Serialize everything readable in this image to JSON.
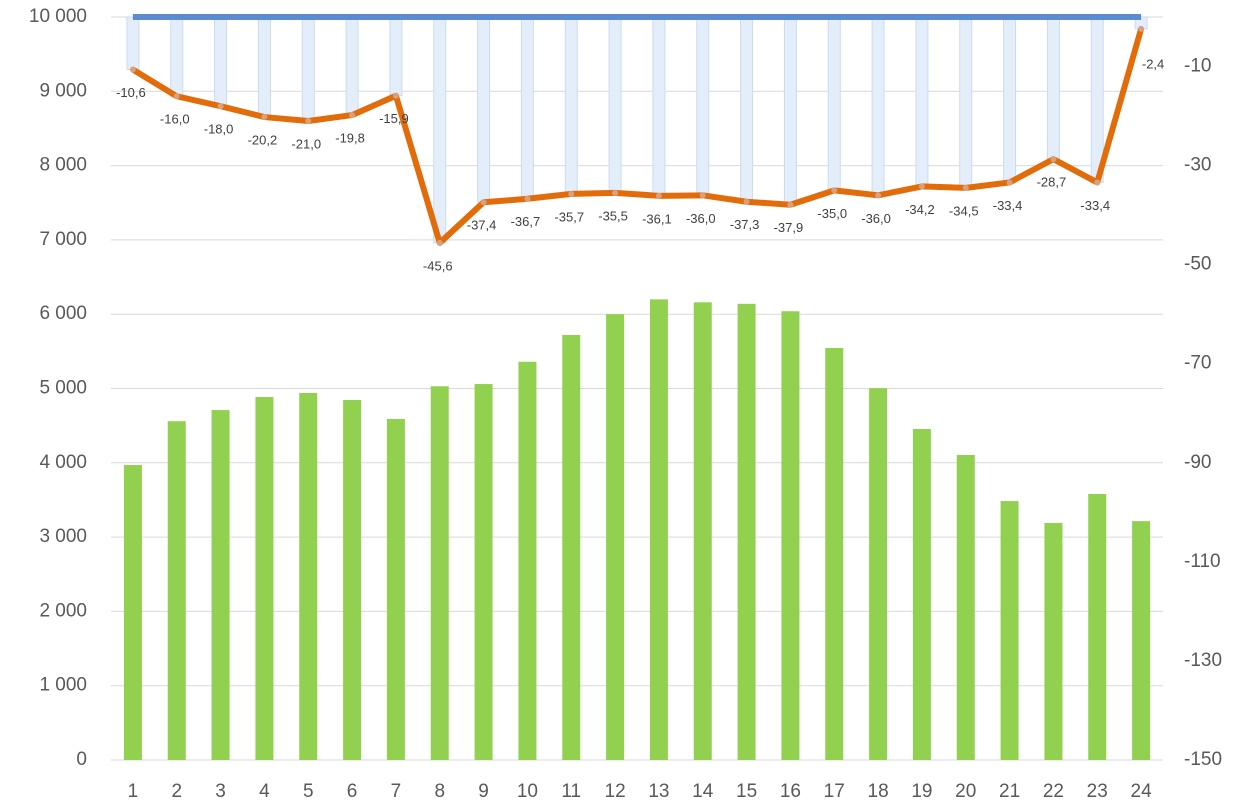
{
  "chart_data": {
    "type": "combo",
    "categories": [
      "1",
      "2",
      "3",
      "4",
      "5",
      "6",
      "7",
      "8",
      "9",
      "10",
      "11",
      "12",
      "13",
      "14",
      "15",
      "16",
      "17",
      "18",
      "19",
      "20",
      "21",
      "22",
      "23",
      "24"
    ],
    "ylim": [
      0,
      10000
    ],
    "yticks": [
      {
        "value": 0,
        "label": "0"
      },
      {
        "value": 1000,
        "label": "1 000"
      },
      {
        "value": 2000,
        "label": "2 000"
      },
      {
        "value": 3000,
        "label": "3 000"
      },
      {
        "value": 4000,
        "label": "4 000"
      },
      {
        "value": 5000,
        "label": "5 000"
      },
      {
        "value": 6000,
        "label": "6 000"
      },
      {
        "value": 7000,
        "label": "7 000"
      },
      {
        "value": 8000,
        "label": "8 000"
      },
      {
        "value": 9000,
        "label": "9 000"
      },
      {
        "value": 10000,
        "label": "10 000"
      }
    ],
    "y2lim": [
      -150,
      0
    ],
    "y2ticks": [
      -150,
      -130,
      -110,
      -90,
      -70,
      -50,
      -30,
      -10
    ],
    "grid": true,
    "series": [
      {
        "type": "bar",
        "axis": "y",
        "color": "#92d050",
        "values": [
          3970,
          4560,
          4710,
          4885,
          4940,
          4845,
          4590,
          5030,
          5060,
          5360,
          5720,
          6000,
          6200,
          6160,
          6140,
          6040,
          5545,
          5005,
          4455,
          4105,
          3485,
          3190,
          3580,
          3215
        ]
      },
      {
        "type": "bar",
        "axis": "y2",
        "color": "#e4eefb",
        "values": [
          -10.6,
          -16.0,
          -18.0,
          -20.2,
          -21.0,
          -19.8,
          -15.9,
          -45.6,
          -37.4,
          -36.7,
          -35.7,
          -35.5,
          -36.1,
          -36.0,
          -37.3,
          -37.9,
          -35.0,
          -36.0,
          -34.2,
          -34.5,
          -33.4,
          -28.7,
          -33.4,
          -2.4
        ]
      },
      {
        "type": "line",
        "axis": "y2",
        "color": "#5b8bd0",
        "values": [
          0,
          0,
          0,
          0,
          0,
          0,
          0,
          0,
          0,
          0,
          0,
          0,
          0,
          0,
          0,
          0,
          0,
          0,
          0,
          0,
          0,
          0,
          0,
          0
        ]
      },
      {
        "type": "line",
        "axis": "y2",
        "color": "#e36c0a",
        "values": [
          -10.6,
          -16.0,
          -18.0,
          -20.2,
          -21.0,
          -19.8,
          -15.9,
          -45.6,
          -37.4,
          -36.7,
          -35.7,
          -35.5,
          -36.1,
          -36.0,
          -37.3,
          -37.9,
          -35.0,
          -36.0,
          -34.2,
          -34.5,
          -33.4,
          -28.7,
          -33.4,
          -2.4
        ],
        "value_labels": [
          "-10,6",
          "-16,0",
          "-18,0",
          "-20,2",
          "-21,0",
          "-19,8",
          "-15,9",
          "-45,6",
          "-37,4",
          "-36,7",
          "-35,7",
          "-35,5",
          "-36,1",
          "-36,0",
          "-37,3",
          "-37,9",
          "-35,0",
          "-36,0",
          "-34,2",
          "-34,5",
          "-33,4",
          "-28,7",
          "-33,4",
          "-2,4"
        ]
      }
    ]
  }
}
